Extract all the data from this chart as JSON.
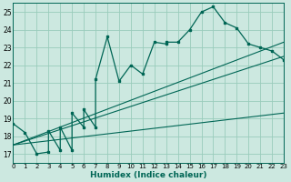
{
  "bg_color": "#cce8e0",
  "grid_color": "#99ccbb",
  "line_color": "#006655",
  "xlabel": "Humidex (Indice chaleur)",
  "xlim": [
    0,
    23
  ],
  "ylim": [
    16.5,
    25.5
  ],
  "yticks": [
    17,
    18,
    19,
    20,
    21,
    22,
    23,
    24,
    25
  ],
  "xticks": [
    0,
    1,
    2,
    3,
    4,
    5,
    6,
    7,
    8,
    9,
    10,
    11,
    12,
    13,
    14,
    15,
    16,
    17,
    18,
    19,
    20,
    21,
    22,
    23
  ],
  "xtick_labels": [
    "0",
    "1",
    "2",
    "3",
    "4",
    "5",
    "6",
    "7",
    "8",
    "9",
    "10",
    "11",
    "12",
    "13",
    "14",
    "15",
    "16",
    "17",
    "18",
    "19",
    "20",
    "21",
    "22",
    "23"
  ],
  "curve_x": [
    0,
    1,
    2,
    3,
    3,
    4,
    4,
    5,
    5,
    6,
    6,
    7,
    7,
    8,
    9,
    10,
    11,
    12,
    13,
    13,
    14,
    15,
    16,
    17,
    18,
    19,
    20,
    21,
    22,
    23
  ],
  "curve_y": [
    18.7,
    18.2,
    17.0,
    17.1,
    18.3,
    17.2,
    18.5,
    17.2,
    19.3,
    18.5,
    19.5,
    18.5,
    21.2,
    23.6,
    21.1,
    22.0,
    21.5,
    23.3,
    23.2,
    23.3,
    23.3,
    24.0,
    25.0,
    25.3,
    24.4,
    24.1,
    23.2,
    23.0,
    22.8,
    22.3
  ],
  "line1_x": [
    0,
    23
  ],
  "line1_y": [
    17.5,
    19.3
  ],
  "line2_x": [
    0,
    23
  ],
  "line2_y": [
    17.5,
    22.5
  ],
  "line3_x": [
    0,
    23
  ],
  "line3_y": [
    17.5,
    23.3
  ]
}
